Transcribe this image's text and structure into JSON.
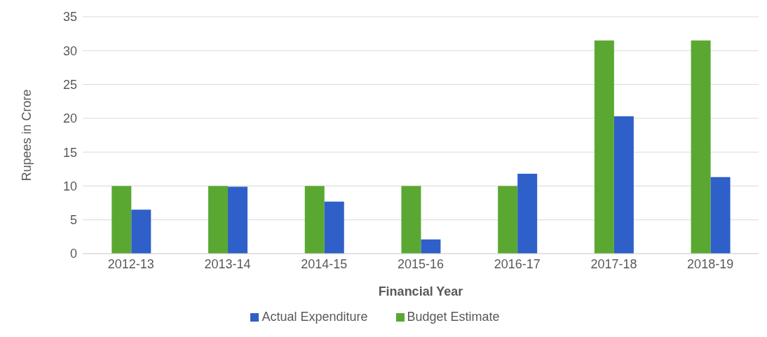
{
  "chart_data": {
    "type": "bar",
    "xlabel": "Financial Year",
    "ylabel": "Rupees in Crore",
    "categories": [
      "2012-13",
      "2013-14",
      "2014-15",
      "2015-16",
      "2016-17",
      "2017-18",
      "2018-19"
    ],
    "series": [
      {
        "name": "Budget Estimate",
        "color": "#5aa832",
        "values": [
          10,
          10,
          10,
          10,
          10,
          31.5,
          31.5
        ]
      },
      {
        "name": "Actual Expenditure",
        "color": "#2f5fc8",
        "values": [
          6.5,
          9.9,
          7.7,
          2.1,
          11.8,
          20.3,
          11.3
        ]
      }
    ],
    "ylim": [
      0,
      35
    ],
    "yticks": [
      0,
      5,
      10,
      15,
      20,
      25,
      30,
      35
    ],
    "grid": "y",
    "legend": "bottom"
  }
}
